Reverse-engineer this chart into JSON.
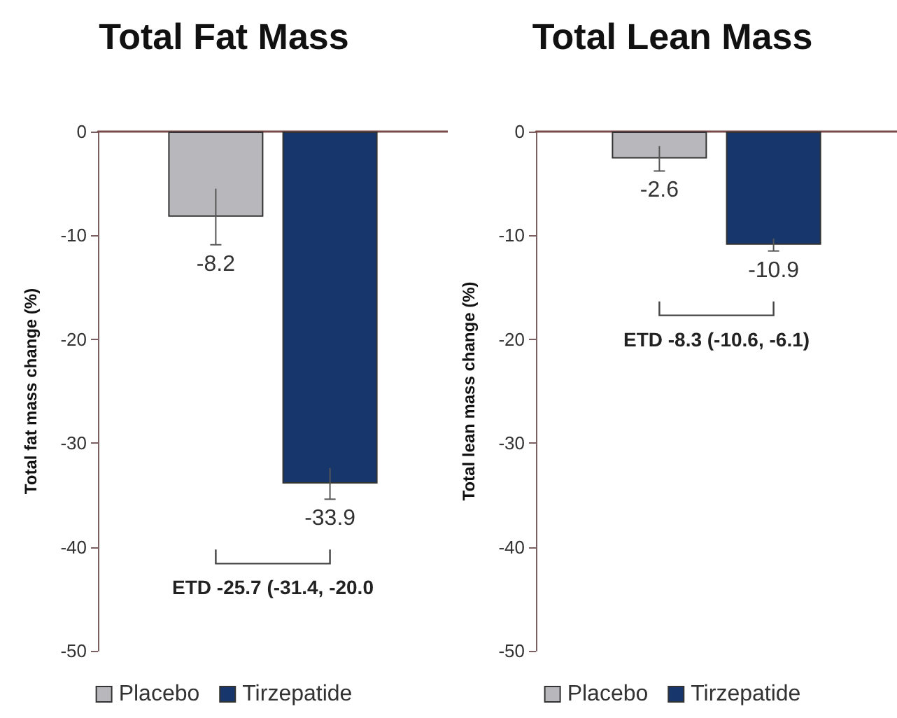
{
  "chart_data": [
    {
      "type": "bar",
      "title": "Total Fat Mass",
      "ylabel": "Total fat mass change (%)",
      "categories": [
        null
      ],
      "series": [
        {
          "name": "Placebo",
          "color": "#b8b8bc",
          "values": [
            -8.2
          ],
          "errors": [
            2.7
          ]
        },
        {
          "name": "Tirzepatide",
          "color": "#17366b",
          "values": [
            -33.9
          ],
          "errors": [
            1.5
          ]
        }
      ],
      "ylim": [
        -50,
        0
      ],
      "yticks": [
        -50,
        -40,
        -30,
        -20,
        -10,
        0
      ],
      "data_labels": true,
      "legend": "bottom",
      "grid": false,
      "annotations": [
        "ETD -25.7 (-31.4, -20.0"
      ]
    },
    {
      "type": "bar",
      "title": "Total Lean Mass",
      "ylabel": "Total lean mass change (%)",
      "categories": [
        null
      ],
      "series": [
        {
          "name": "Placebo",
          "color": "#b8b8bc",
          "values": [
            -2.6
          ],
          "errors": [
            1.2
          ]
        },
        {
          "name": "Tirzepatide",
          "color": "#17366b",
          "values": [
            -10.9
          ],
          "errors": [
            0.6
          ]
        }
      ],
      "ylim": [
        -50,
        0
      ],
      "yticks": [
        -50,
        -40,
        -30,
        -20,
        -10,
        0
      ],
      "data_labels": true,
      "legend": "bottom",
      "grid": false,
      "annotations": [
        "ETD -8.3 (-10.6, -6.1)"
      ]
    }
  ]
}
